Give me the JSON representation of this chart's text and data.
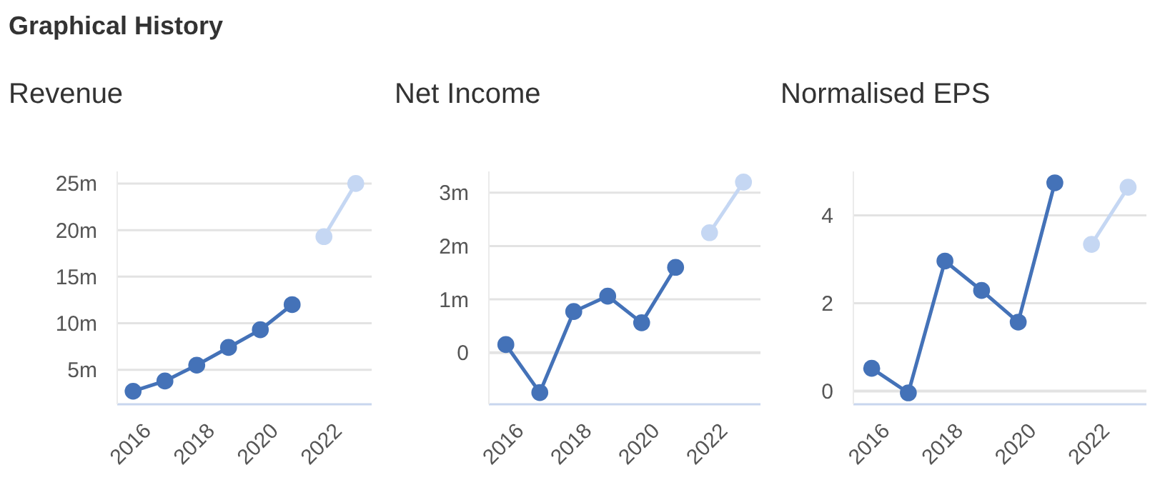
{
  "chart_data": [
    {
      "type": "line",
      "title": "Revenue",
      "annotations": [
        "Graphical History"
      ],
      "xlim": [
        2015.5,
        2023.5
      ],
      "xticks": [
        2016,
        2018,
        2020,
        2022
      ],
      "ylim": [
        1.3,
        26.3
      ],
      "yticks": [
        {
          "value": 5,
          "label": "5m"
        },
        {
          "value": 10,
          "label": "10m"
        },
        {
          "value": 15,
          "label": "15m"
        },
        {
          "value": 20,
          "label": "20m"
        },
        {
          "value": 25,
          "label": "25m"
        }
      ],
      "grid": "y",
      "marker": "circle",
      "series": [
        {
          "color": "#4472b8",
          "x": [
            2016,
            2017,
            2018,
            2019,
            2020,
            2021
          ],
          "values": [
            2.7,
            3.8,
            5.5,
            7.4,
            9.3,
            12.0
          ]
        },
        {
          "color": "#c5d7f3",
          "x": [
            2022,
            2023
          ],
          "values": [
            19.3,
            25.0
          ]
        }
      ]
    },
    {
      "type": "line",
      "title": "Net Income",
      "xlim": [
        2015.5,
        2023.5
      ],
      "xticks": [
        2016,
        2018,
        2020,
        2022
      ],
      "ylim": [
        -0.97,
        3.4
      ],
      "yticks": [
        0,
        {
          "value": 1,
          "label": "1m"
        },
        {
          "value": 2,
          "label": "2m"
        },
        {
          "value": 3,
          "label": "3m"
        }
      ],
      "grid": "y",
      "marker": "circle",
      "series": [
        {
          "color": "#4472b8",
          "x": [
            2016,
            2017,
            2018,
            2019,
            2020,
            2021
          ],
          "values": [
            0.15,
            -0.75,
            0.77,
            1.06,
            0.56,
            1.6
          ]
        },
        {
          "color": "#c5d7f3",
          "x": [
            2022,
            2023
          ],
          "values": [
            2.25,
            3.2
          ]
        }
      ]
    },
    {
      "type": "line",
      "title": "Normalised EPS",
      "xlim": [
        2015.5,
        2023.5
      ],
      "xticks": [
        2016,
        2018,
        2020,
        2022
      ],
      "ylim": [
        -0.3,
        5.0
      ],
      "yticks": [
        0,
        2,
        4
      ],
      "grid": "y",
      "marker": "circle",
      "series": [
        {
          "color": "#4472b8",
          "x": [
            2016,
            2017,
            2018,
            2019,
            2020,
            2021
          ],
          "values": [
            0.52,
            -0.04,
            2.96,
            2.29,
            1.57,
            4.74
          ]
        },
        {
          "color": "#c5d7f3",
          "x": [
            2022,
            2023
          ],
          "values": [
            3.34,
            4.64
          ]
        }
      ]
    }
  ]
}
